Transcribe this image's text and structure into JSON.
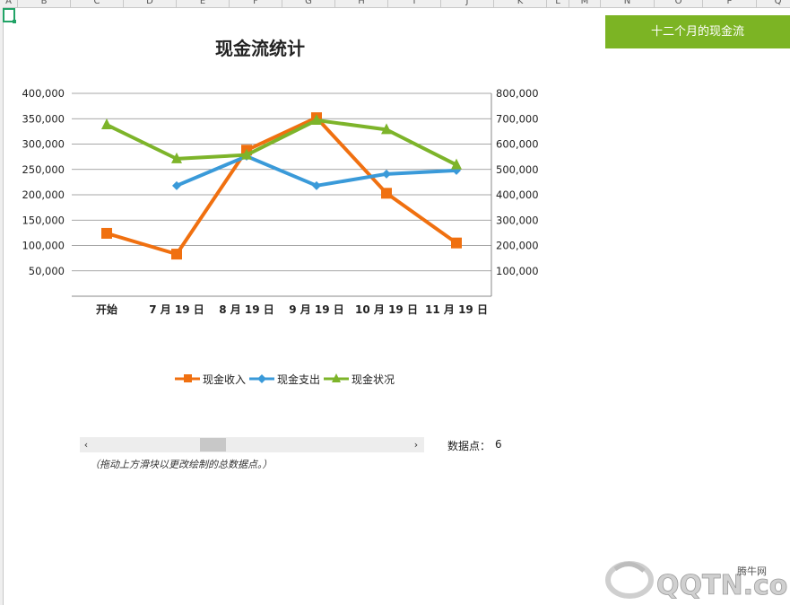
{
  "spreadsheet": {
    "columns": [
      "A",
      "B",
      "C",
      "D",
      "E",
      "F",
      "G",
      "H",
      "I",
      "J",
      "K",
      "L",
      "M",
      "N",
      "O",
      "P",
      "Q"
    ]
  },
  "chart_button": {
    "label": "十二个月的现金流"
  },
  "chart_data": {
    "type": "line",
    "title": "现金流统计",
    "categories": [
      "开始",
      "7 月 19 日",
      "8 月 19 日",
      "9 月 19 日",
      "10 月 19 日",
      "11 月 19 日"
    ],
    "y_left": {
      "ylim": [
        0,
        400000
      ],
      "ticks": [
        "50,000",
        "100,000",
        "150,000",
        "200,000",
        "250,000",
        "300,000",
        "350,000",
        "400,000"
      ]
    },
    "y_right": {
      "ylim": [
        0,
        800000
      ],
      "ticks": [
        "100,000",
        "200,000",
        "300,000",
        "400,000",
        "500,000",
        "600,000",
        "700,000",
        "800,000"
      ]
    },
    "grid": true,
    "legend_position": "bottom",
    "series": [
      {
        "name": "现金收入",
        "axis": "left",
        "color": "#f07010",
        "marker": "square",
        "values": [
          124000,
          83000,
          288000,
          352000,
          203000,
          105000
        ]
      },
      {
        "name": "现金支出",
        "axis": "left",
        "color": "#3a9ad9",
        "marker": "diamond",
        "values": [
          null,
          218000,
          276000,
          218000,
          241000,
          248000
        ]
      },
      {
        "name": "现金状况",
        "axis": "right",
        "color": "#7db42a",
        "marker": "triangle",
        "values": [
          676000,
          542000,
          557000,
          694000,
          657000,
          518000
        ]
      }
    ]
  },
  "data_points": {
    "label": "数据点：",
    "value": "6"
  },
  "hint_text": "（拖动上方滑块以更改绘制的总数据点。）",
  "watermark": {
    "site": "腾牛网",
    "brand": "QQTN.com"
  },
  "scroll": {
    "left_arrow": "‹",
    "right_arrow": "›"
  }
}
